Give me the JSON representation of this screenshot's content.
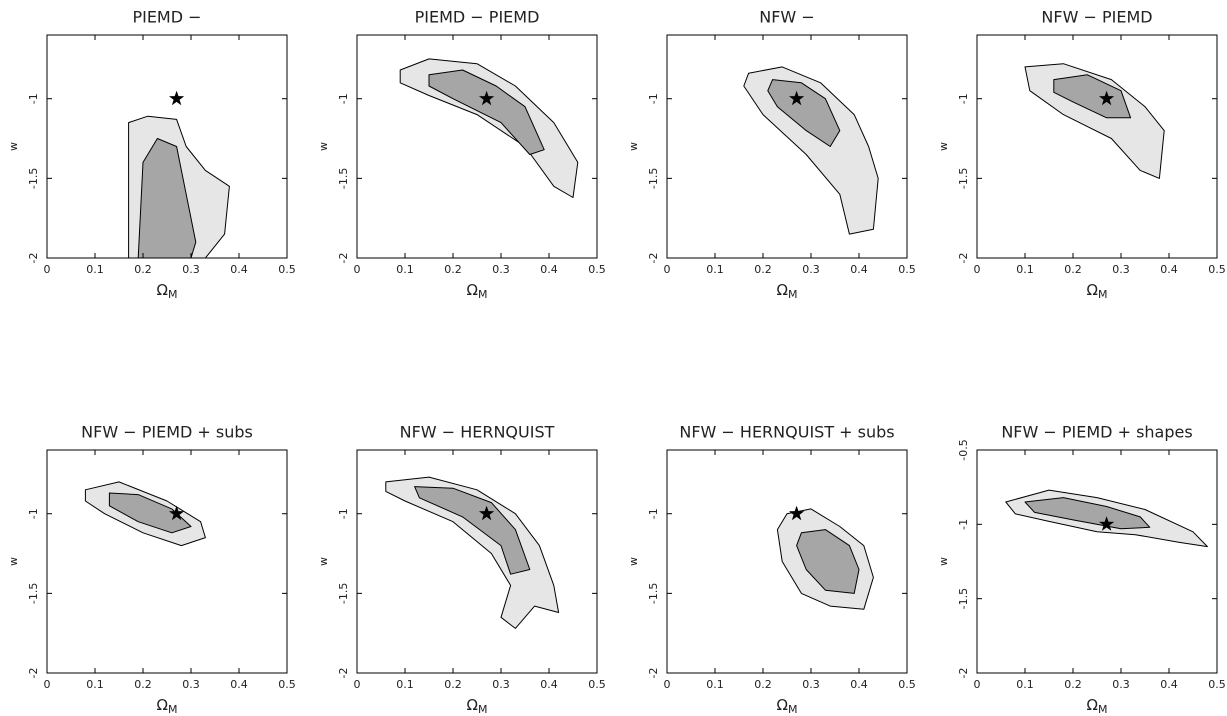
{
  "chart_data": [
    {
      "type": "contour",
      "title": "PIEMD −",
      "xlabel": {
        "main": "Ω",
        "sub": "M"
      },
      "ylabel": "w",
      "xlim": [
        0,
        0.5
      ],
      "ylim": [
        -2,
        -0.6
      ],
      "xticks": [
        0,
        0.1,
        0.2,
        0.3,
        0.4,
        0.5
      ],
      "yticks": [
        -2,
        -1.5,
        -1
      ],
      "contours": [
        {
          "fill": "#e6e6e6",
          "points": [
            [
              0.17,
              -2
            ],
            [
              0.17,
              -1.15
            ],
            [
              0.21,
              -1.11
            ],
            [
              0.27,
              -1.13
            ],
            [
              0.29,
              -1.3
            ],
            [
              0.33,
              -1.45
            ],
            [
              0.38,
              -1.55
            ],
            [
              0.37,
              -1.85
            ],
            [
              0.33,
              -2
            ]
          ]
        },
        {
          "fill": "#a6a6a6",
          "points": [
            [
              0.19,
              -2
            ],
            [
              0.2,
              -1.4
            ],
            [
              0.23,
              -1.25
            ],
            [
              0.27,
              -1.3
            ],
            [
              0.29,
              -1.6
            ],
            [
              0.31,
              -1.9
            ],
            [
              0.3,
              -2
            ]
          ]
        }
      ],
      "markers": [
        {
          "x": 0.27,
          "y": -1
        }
      ]
    },
    {
      "type": "contour",
      "title": "PIEMD − PIEMD",
      "xlabel": {
        "main": "Ω",
        "sub": "M"
      },
      "ylabel": "w",
      "xlim": [
        0,
        0.5
      ],
      "ylim": [
        -2,
        -0.6
      ],
      "xticks": [
        0,
        0.1,
        0.2,
        0.3,
        0.4,
        0.5
      ],
      "yticks": [
        -2,
        -1.5,
        -1
      ],
      "contours": [
        {
          "fill": "#e6e6e6",
          "points": [
            [
              0.09,
              -0.82
            ],
            [
              0.15,
              -0.75
            ],
            [
              0.25,
              -0.78
            ],
            [
              0.33,
              -0.92
            ],
            [
              0.41,
              -1.15
            ],
            [
              0.46,
              -1.4
            ],
            [
              0.45,
              -1.62
            ],
            [
              0.41,
              -1.55
            ],
            [
              0.35,
              -1.3
            ],
            [
              0.25,
              -1.1
            ],
            [
              0.15,
              -0.98
            ],
            [
              0.09,
              -0.9
            ]
          ]
        },
        {
          "fill": "#a6a6a6",
          "points": [
            [
              0.15,
              -0.85
            ],
            [
              0.22,
              -0.82
            ],
            [
              0.29,
              -0.92
            ],
            [
              0.35,
              -1.05
            ],
            [
              0.39,
              -1.32
            ],
            [
              0.36,
              -1.35
            ],
            [
              0.3,
              -1.15
            ],
            [
              0.2,
              -1.0
            ],
            [
              0.15,
              -0.92
            ]
          ]
        }
      ],
      "markers": [
        {
          "x": 0.27,
          "y": -1
        }
      ]
    },
    {
      "type": "contour",
      "title": "NFW −",
      "xlabel": {
        "main": "Ω",
        "sub": "M"
      },
      "ylabel": "w",
      "xlim": [
        0,
        0.5
      ],
      "ylim": [
        -2,
        -0.6
      ],
      "xticks": [
        0,
        0.1,
        0.2,
        0.3,
        0.4,
        0.5
      ],
      "yticks": [
        -2,
        -1.5,
        -1
      ],
      "contours": [
        {
          "fill": "#e6e6e6",
          "points": [
            [
              0.17,
              -0.84
            ],
            [
              0.24,
              -0.8
            ],
            [
              0.32,
              -0.9
            ],
            [
              0.39,
              -1.1
            ],
            [
              0.42,
              -1.3
            ],
            [
              0.44,
              -1.5
            ],
            [
              0.43,
              -1.82
            ],
            [
              0.38,
              -1.85
            ],
            [
              0.36,
              -1.6
            ],
            [
              0.29,
              -1.35
            ],
            [
              0.2,
              -1.1
            ],
            [
              0.16,
              -0.92
            ]
          ]
        },
        {
          "fill": "#a6a6a6",
          "points": [
            [
              0.22,
              -0.88
            ],
            [
              0.28,
              -0.9
            ],
            [
              0.33,
              -1.0
            ],
            [
              0.36,
              -1.2
            ],
            [
              0.34,
              -1.3
            ],
            [
              0.29,
              -1.2
            ],
            [
              0.23,
              -1.05
            ],
            [
              0.21,
              -0.95
            ]
          ]
        }
      ],
      "markers": [
        {
          "x": 0.27,
          "y": -1
        }
      ]
    },
    {
      "type": "contour",
      "title": "NFW − PIEMD",
      "xlabel": {
        "main": "Ω",
        "sub": "M"
      },
      "ylabel": "w",
      "xlim": [
        0,
        0.5
      ],
      "ylim": [
        -2,
        -0.6
      ],
      "xticks": [
        0,
        0.1,
        0.2,
        0.3,
        0.4,
        0.5
      ],
      "yticks": [
        -2,
        -1.5,
        -1
      ],
      "contours": [
        {
          "fill": "#e6e6e6",
          "points": [
            [
              0.1,
              -0.8
            ],
            [
              0.18,
              -0.78
            ],
            [
              0.28,
              -0.88
            ],
            [
              0.35,
              -1.05
            ],
            [
              0.39,
              -1.2
            ],
            [
              0.38,
              -1.5
            ],
            [
              0.34,
              -1.45
            ],
            [
              0.28,
              -1.25
            ],
            [
              0.18,
              -1.1
            ],
            [
              0.11,
              -0.95
            ]
          ]
        },
        {
          "fill": "#a6a6a6",
          "points": [
            [
              0.16,
              -0.88
            ],
            [
              0.23,
              -0.85
            ],
            [
              0.3,
              -0.95
            ],
            [
              0.32,
              -1.12
            ],
            [
              0.27,
              -1.12
            ],
            [
              0.2,
              -1.02
            ],
            [
              0.16,
              -0.96
            ]
          ]
        }
      ],
      "markers": [
        {
          "x": 0.27,
          "y": -1
        }
      ]
    },
    {
      "type": "contour",
      "title": "NFW − PIEMD + subs",
      "xlabel": {
        "main": "Ω",
        "sub": "M"
      },
      "ylabel": "w",
      "xlim": [
        0,
        0.5
      ],
      "ylim": [
        -2,
        -0.6
      ],
      "xticks": [
        0,
        0.1,
        0.2,
        0.3,
        0.4,
        0.5
      ],
      "yticks": [
        -2,
        -1.5,
        -1
      ],
      "contours": [
        {
          "fill": "#e6e6e6",
          "points": [
            [
              0.08,
              -0.85
            ],
            [
              0.15,
              -0.8
            ],
            [
              0.25,
              -0.92
            ],
            [
              0.32,
              -1.05
            ],
            [
              0.33,
              -1.15
            ],
            [
              0.28,
              -1.2
            ],
            [
              0.2,
              -1.12
            ],
            [
              0.12,
              -1.0
            ],
            [
              0.08,
              -0.92
            ]
          ]
        },
        {
          "fill": "#a6a6a6",
          "points": [
            [
              0.13,
              -0.87
            ],
            [
              0.19,
              -0.88
            ],
            [
              0.26,
              -0.97
            ],
            [
              0.3,
              -1.08
            ],
            [
              0.26,
              -1.12
            ],
            [
              0.19,
              -1.05
            ],
            [
              0.13,
              -0.95
            ]
          ]
        }
      ],
      "markers": [
        {
          "x": 0.27,
          "y": -1
        }
      ]
    },
    {
      "type": "contour",
      "title": "NFW − HERNQUIST",
      "xlabel": {
        "main": "Ω",
        "sub": "M"
      },
      "ylabel": "w",
      "xlim": [
        0,
        0.5
      ],
      "ylim": [
        -2,
        -0.6
      ],
      "xticks": [
        0,
        0.1,
        0.2,
        0.3,
        0.4,
        0.5
      ],
      "yticks": [
        -2,
        -1.5,
        -1
      ],
      "contours": [
        {
          "fill": "#e6e6e6",
          "points": [
            [
              0.06,
              -0.8
            ],
            [
              0.15,
              -0.77
            ],
            [
              0.25,
              -0.85
            ],
            [
              0.33,
              -1.0
            ],
            [
              0.38,
              -1.2
            ],
            [
              0.41,
              -1.45
            ],
            [
              0.42,
              -1.62
            ],
            [
              0.37,
              -1.58
            ],
            [
              0.33,
              -1.72
            ],
            [
              0.3,
              -1.65
            ],
            [
              0.32,
              -1.45
            ],
            [
              0.28,
              -1.25
            ],
            [
              0.2,
              -1.05
            ],
            [
              0.1,
              -0.92
            ],
            [
              0.06,
              -0.86
            ]
          ]
        },
        {
          "fill": "#a6a6a6",
          "points": [
            [
              0.12,
              -0.83
            ],
            [
              0.2,
              -0.84
            ],
            [
              0.28,
              -0.93
            ],
            [
              0.33,
              -1.1
            ],
            [
              0.36,
              -1.35
            ],
            [
              0.32,
              -1.38
            ],
            [
              0.3,
              -1.2
            ],
            [
              0.22,
              -1.02
            ],
            [
              0.13,
              -0.9
            ]
          ]
        }
      ],
      "markers": [
        {
          "x": 0.27,
          "y": -1
        }
      ]
    },
    {
      "type": "contour",
      "title": "NFW − HERNQUIST + subs",
      "xlabel": {
        "main": "Ω",
        "sub": "M"
      },
      "ylabel": "w",
      "xlim": [
        0,
        0.5
      ],
      "ylim": [
        -2,
        -0.6
      ],
      "xticks": [
        0,
        0.1,
        0.2,
        0.3,
        0.4,
        0.5
      ],
      "yticks": [
        -2,
        -1.5,
        -1
      ],
      "contours": [
        {
          "fill": "#e6e6e6",
          "points": [
            [
              0.25,
              -1.0
            ],
            [
              0.3,
              -0.97
            ],
            [
              0.36,
              -1.08
            ],
            [
              0.41,
              -1.2
            ],
            [
              0.43,
              -1.4
            ],
            [
              0.41,
              -1.6
            ],
            [
              0.34,
              -1.58
            ],
            [
              0.28,
              -1.5
            ],
            [
              0.24,
              -1.3
            ],
            [
              0.23,
              -1.1
            ]
          ]
        },
        {
          "fill": "#a6a6a6",
          "points": [
            [
              0.28,
              -1.12
            ],
            [
              0.33,
              -1.1
            ],
            [
              0.38,
              -1.2
            ],
            [
              0.4,
              -1.35
            ],
            [
              0.39,
              -1.5
            ],
            [
              0.33,
              -1.48
            ],
            [
              0.29,
              -1.35
            ],
            [
              0.27,
              -1.2
            ]
          ]
        }
      ],
      "markers": [
        {
          "x": 0.27,
          "y": -1
        }
      ]
    },
    {
      "type": "contour",
      "title": "NFW − PIEMD + shapes",
      "xlabel": {
        "main": "Ω",
        "sub": "M"
      },
      "ylabel": "w",
      "xlim": [
        0,
        0.5
      ],
      "ylim": [
        -2,
        -0.5
      ],
      "xticks": [
        0,
        0.1,
        0.2,
        0.3,
        0.4,
        0.5
      ],
      "yticks": [
        -2,
        -1.5,
        -1,
        -0.5
      ],
      "contours": [
        {
          "fill": "#e6e6e6",
          "points": [
            [
              0.06,
              -0.85
            ],
            [
              0.15,
              -0.77
            ],
            [
              0.25,
              -0.82
            ],
            [
              0.35,
              -0.9
            ],
            [
              0.45,
              -1.05
            ],
            [
              0.48,
              -1.15
            ],
            [
              0.42,
              -1.12
            ],
            [
              0.33,
              -1.07
            ],
            [
              0.25,
              -1.05
            ],
            [
              0.15,
              -0.98
            ],
            [
              0.08,
              -0.93
            ]
          ]
        },
        {
          "fill": "#a6a6a6",
          "points": [
            [
              0.1,
              -0.85
            ],
            [
              0.18,
              -0.82
            ],
            [
              0.27,
              -0.88
            ],
            [
              0.34,
              -0.95
            ],
            [
              0.36,
              -1.02
            ],
            [
              0.3,
              -1.03
            ],
            [
              0.2,
              -0.97
            ],
            [
              0.12,
              -0.92
            ]
          ]
        }
      ],
      "markers": [
        {
          "x": 0.27,
          "y": -1
        }
      ]
    }
  ]
}
